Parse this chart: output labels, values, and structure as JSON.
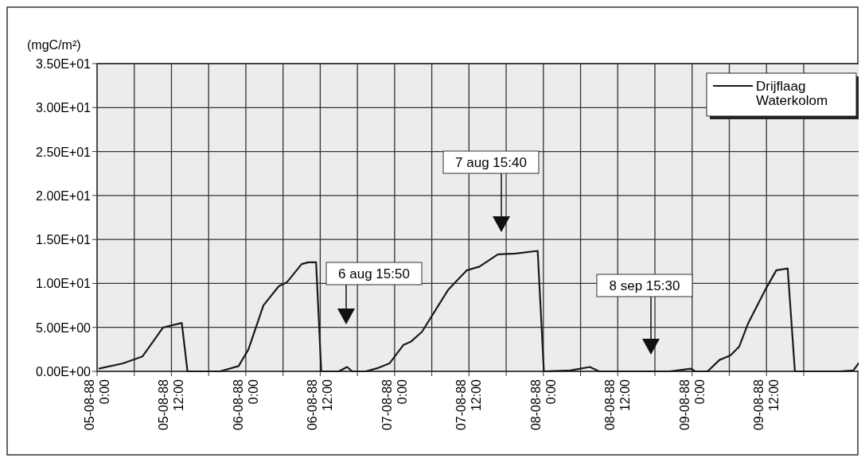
{
  "chart_data": {
    "type": "line",
    "ylabel": "(mgC/m²)",
    "xlim": [
      "1988-08-05T00:00",
      "1988-08-10T03:15"
    ],
    "xticks": [
      {
        "value": "1988-08-05T00:00",
        "label": "05-08-88 0:00"
      },
      {
        "value": "1988-08-05T06:00",
        "label": null
      },
      {
        "value": "1988-08-05T12:00",
        "label": "05-08-88 12:00"
      },
      {
        "value": "1988-08-05T18:00",
        "label": null
      },
      {
        "value": "1988-08-06T00:00",
        "label": "06-08-88 0:00"
      },
      {
        "value": "1988-08-06T06:00",
        "label": null
      },
      {
        "value": "1988-08-06T12:00",
        "label": "06-08-88 12:00"
      },
      {
        "value": "1988-08-06T18:00",
        "label": null
      },
      {
        "value": "1988-08-07T00:00",
        "label": "07-08-88 0:00"
      },
      {
        "value": "1988-08-07T06:00",
        "label": null
      },
      {
        "value": "1988-08-07T12:00",
        "label": "07-08-88 12:00"
      },
      {
        "value": "1988-08-07T18:00",
        "label": null
      },
      {
        "value": "1988-08-08T00:00",
        "label": "08-08-88 0:00"
      },
      {
        "value": "1988-08-08T06:00",
        "label": null
      },
      {
        "value": "1988-08-08T12:00",
        "label": "08-08-88 12:00"
      },
      {
        "value": "1988-08-08T18:00",
        "label": null
      },
      {
        "value": "1988-08-09T00:00",
        "label": "09-08-88 0:00"
      },
      {
        "value": "1988-08-09T06:00",
        "label": null
      },
      {
        "value": "1988-08-09T12:00",
        "label": "09-08-88 12:00"
      },
      {
        "value": "1988-08-09T18:00",
        "label": null
      }
    ],
    "ylim": [
      0,
      35
    ],
    "yticks": [
      {
        "value": 0,
        "label": "0.00E+00"
      },
      {
        "value": 5,
        "label": "5.00E+00"
      },
      {
        "value": 10,
        "label": "1.00E+01"
      },
      {
        "value": 15,
        "label": "1.50E+01"
      },
      {
        "value": 20,
        "label": "2.00E+01"
      },
      {
        "value": 25,
        "label": "2.50E+01"
      },
      {
        "value": 30,
        "label": "3.00E+01"
      },
      {
        "value": 35,
        "label": "3.50E+01"
      }
    ],
    "grid": true,
    "legend": "top right",
    "series": [
      {
        "name": "Drijflaag",
        "color": "#1a1a1a",
        "x": [
          "1988-08-05T00:15",
          "1988-08-05T04:10",
          "1988-08-05T07:20",
          "1988-08-05T10:40",
          "1988-08-05T13:40",
          "1988-08-05T14:35",
          "1988-08-05T19:50",
          "1988-08-05T22:50",
          "1988-08-06T00:25",
          "1988-08-06T02:50",
          "1988-08-06T05:20",
          "1988-08-06T06:35",
          "1988-08-06T09:00",
          "1988-08-06T10:05",
          "1988-08-06T11:20",
          "1988-08-06T12:10",
          "1988-08-06T15:00",
          "1988-08-06T16:20",
          "1988-08-06T17:10",
          "1988-08-06T19:20",
          "1988-08-06T21:25",
          "1988-08-06T23:10",
          "1988-08-07T01:25",
          "1988-08-07T02:40",
          "1988-08-07T04:25",
          "1988-08-07T08:40",
          "1988-08-07T11:40",
          "1988-08-07T13:40",
          "1988-08-07T16:40",
          "1988-08-07T19:30",
          "1988-08-07T23:05",
          "1988-08-08T00:05",
          "1988-08-08T04:20",
          "1988-08-08T07:30",
          "1988-08-08T09:00",
          "1988-08-08T20:20",
          "1988-08-08T23:50",
          "1988-08-09T00:30",
          "1988-08-09T02:30",
          "1988-08-09T04:25",
          "1988-08-09T06:10",
          "1988-08-09T07:35",
          "1988-08-09T09:00",
          "1988-08-09T11:40",
          "1988-08-09T13:35",
          "1988-08-09T15:25",
          "1988-08-09T16:35",
          "1988-08-09T23:50",
          "1988-08-10T02:00",
          "1988-08-10T03:10"
        ],
        "values": [
          0.3,
          0.9,
          1.7,
          5.0,
          5.5,
          0,
          0,
          0.6,
          2.5,
          7.5,
          9.7,
          10.1,
          12.2,
          12.4,
          12.4,
          0,
          0,
          0.5,
          0,
          0,
          0.4,
          0.9,
          3.0,
          3.4,
          4.5,
          9.3,
          11.5,
          11.9,
          13.3,
          13.4,
          13.7,
          0,
          0.1,
          0.5,
          0,
          0,
          0.3,
          0,
          0,
          1.3,
          1.8,
          2.8,
          5.4,
          9.1,
          11.5,
          11.7,
          0,
          0,
          0.1,
          1.2
        ]
      }
    ],
    "annotations": [
      "6 aug 15:50",
      "7 aug 15:40",
      "8 sep 15:30",
      "Waterkolom"
    ]
  }
}
